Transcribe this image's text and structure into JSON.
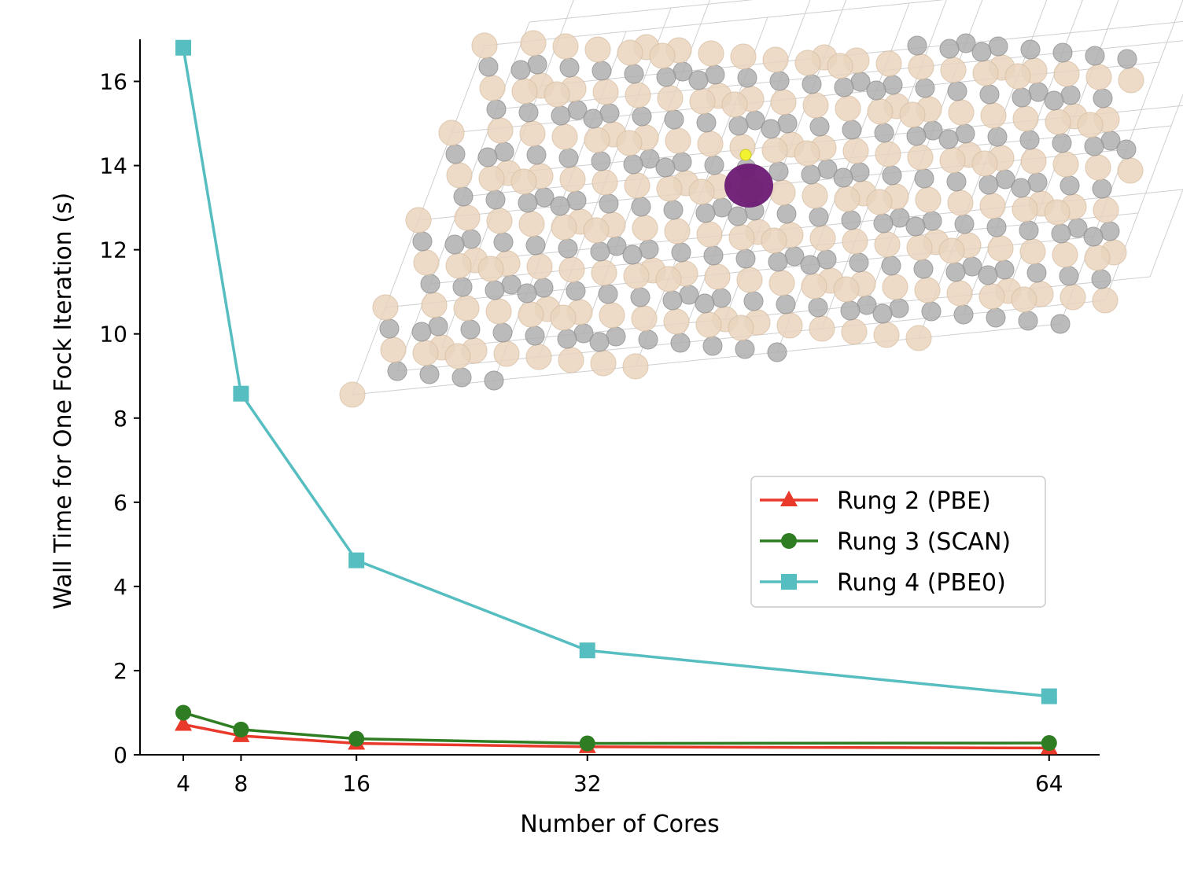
{
  "chart_data": {
    "type": "line",
    "title": "",
    "xlabel": "Number of Cores",
    "ylabel": "Wall Time for One Fock Iteration (s)",
    "x": [
      4,
      8,
      16,
      32,
      64
    ],
    "x_tick_labels": [
      "4",
      "8",
      "16",
      "32",
      "64"
    ],
    "y_ticks": [
      0,
      2,
      4,
      6,
      8,
      10,
      12,
      14,
      16
    ],
    "y_tick_labels": [
      "0",
      "2",
      "4",
      "6",
      "8",
      "10",
      "12",
      "14",
      "16"
    ],
    "xlim": [
      1.0,
      67.5
    ],
    "ylim": [
      0,
      17.0
    ],
    "grid": false,
    "legend_position": "center-right",
    "series": [
      {
        "name": "Rung 2 (PBE)",
        "marker": "triangle",
        "color": "#e8392b",
        "values": [
          0.72,
          0.45,
          0.27,
          0.19,
          0.16
        ]
      },
      {
        "name": "Rung 3 (SCAN)",
        "marker": "circle",
        "color": "#2f7d22",
        "values": [
          1.0,
          0.6,
          0.38,
          0.27,
          0.28
        ]
      },
      {
        "name": "Rung 4 (PBE0)",
        "marker": "square",
        "color": "#56bdc0",
        "values": [
          16.8,
          8.58,
          4.62,
          2.48,
          1.39
        ]
      }
    ],
    "inset_image": {
      "description": "",
      "atom_color_light": "#ead5bf",
      "atom_color_dark": "#b0b0b0",
      "highlight_color": "#6b1a73",
      "dopant_color": "#f2f230"
    }
  }
}
